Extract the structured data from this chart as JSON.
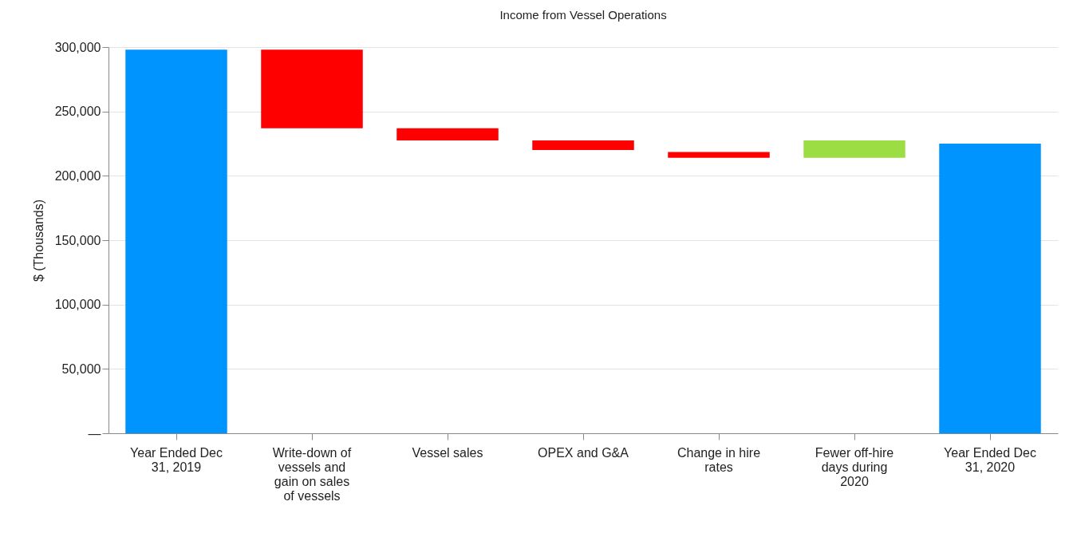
{
  "chart_data": {
    "type": "bar",
    "title": "Income from Vessel Operations",
    "ylabel": "$ (Thousands)",
    "categories": [
      "Year Ended Dec 31, 2019",
      "Write-down of vessels and gain on sales of vessels",
      "Vessel sales",
      "OPEX and G&A",
      "Change in hire rates",
      "Fewer off-hire days during 2020",
      "Year Ended Dec 31, 2020"
    ],
    "values": [
      298000,
      -61000,
      -9500,
      -7500,
      -4500,
      13500,
      225000
    ],
    "base": [
      0,
      298000,
      237000,
      227500,
      218500,
      214000,
      0
    ],
    "colors": [
      "#0094ff",
      "#ff0000",
      "#ff0000",
      "#ff0000",
      "#ff0000",
      "#9ddd44",
      "#0094ff"
    ],
    "ylim": [
      0,
      300000
    ],
    "yticks": [
      {
        "value": 0,
        "label": "—"
      },
      {
        "value": 50000,
        "label": "50,000"
      },
      {
        "value": 100000,
        "label": "100,000"
      },
      {
        "value": 150000,
        "label": "150,000"
      },
      {
        "value": 200000,
        "label": "200,000"
      },
      {
        "value": 250000,
        "label": "250,000"
      },
      {
        "value": 300000,
        "label": "300,000"
      }
    ],
    "grid": "y"
  }
}
